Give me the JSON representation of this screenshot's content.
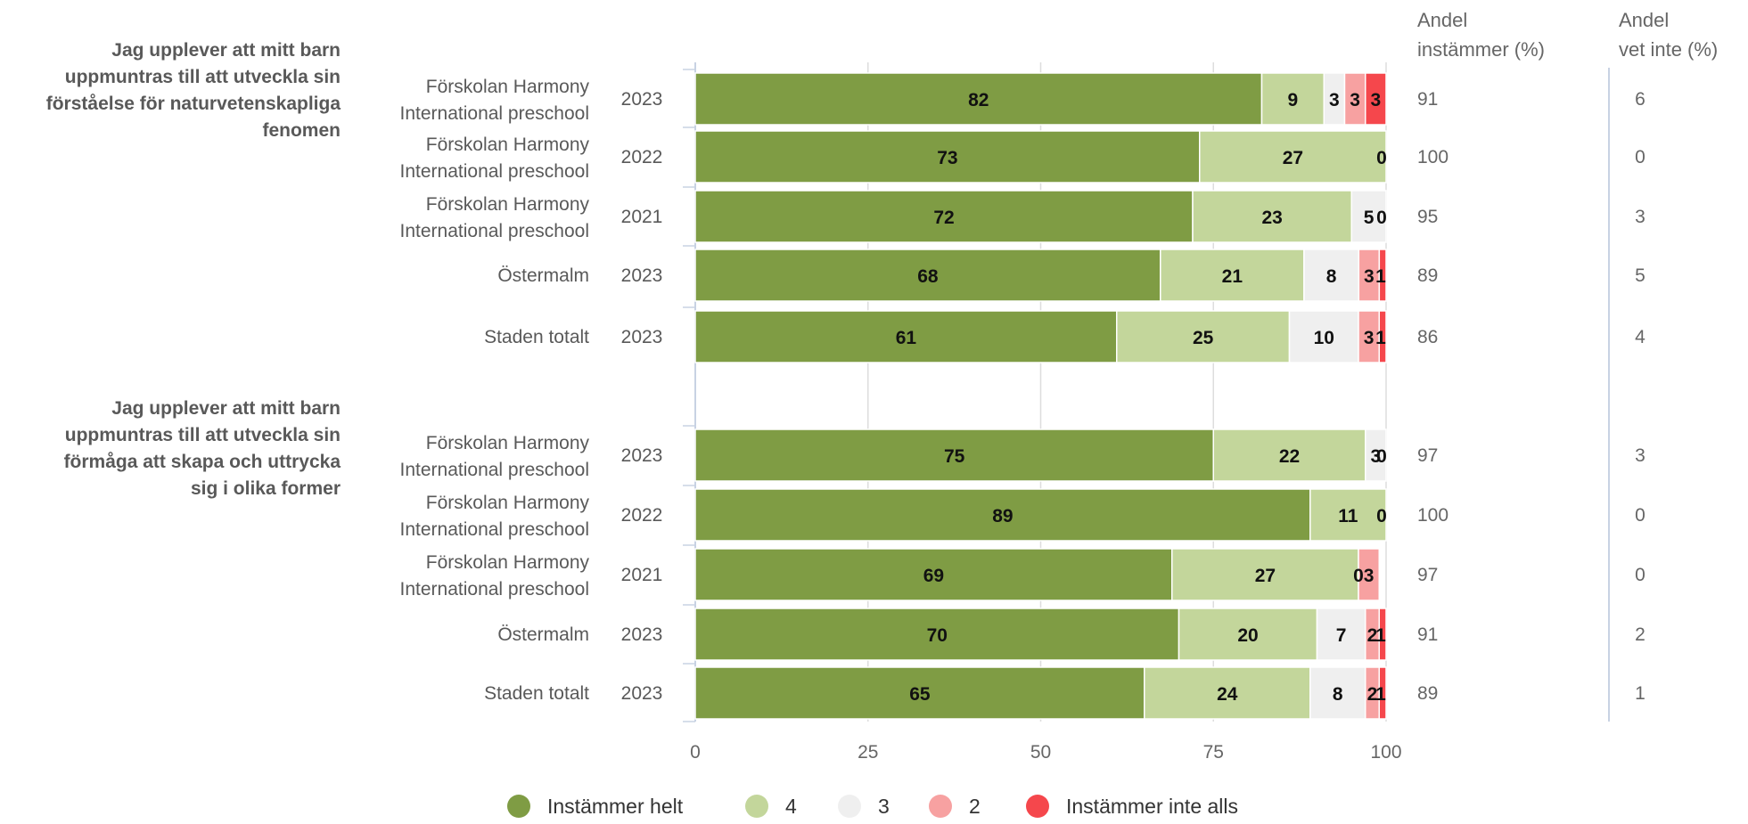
{
  "chart_data": {
    "type": "bar",
    "orientation": "horizontal",
    "stacked": true,
    "xlim": [
      0,
      100
    ],
    "x_ticks": [
      0,
      25,
      50,
      75,
      100
    ],
    "grid": true,
    "legend_position": "bottom",
    "column_headers": [
      [
        "Andel",
        "instämmer (%)"
      ],
      [
        "Andel",
        "vet inte (%)"
      ]
    ],
    "series": [
      {
        "name": "Instämmer helt",
        "color": "#7f9c44"
      },
      {
        "name": "4",
        "color": "#c3d69b"
      },
      {
        "name": "3",
        "color": "#efefef"
      },
      {
        "name": "2",
        "color": "#f7a1a1"
      },
      {
        "name": "Instämmer inte alls",
        "color": "#f5474c"
      }
    ],
    "groups": [
      {
        "question": [
          "Jag upplever att mitt barn",
          "uppmuntras till att utveckla sin",
          "förståelse för naturvetenskapliga",
          "fenomen"
        ],
        "rows": [
          {
            "unit": [
              "Förskolan Harmony",
              "International preschool"
            ],
            "year": "2023",
            "values": [
              82,
              9,
              3,
              3,
              3
            ],
            "andel_instammer": "91",
            "andel_vet_inte": "6"
          },
          {
            "unit": [
              "Förskolan Harmony",
              "International preschool"
            ],
            "year": "2022",
            "values": [
              73,
              27,
              0,
              0,
              0
            ],
            "andel_instammer": "100",
            "andel_vet_inte": "0"
          },
          {
            "unit": [
              "Förskolan Harmony",
              "International preschool"
            ],
            "year": "2021",
            "values": [
              72,
              23,
              5,
              0,
              0
            ],
            "andel_instammer": "95",
            "andel_vet_inte": "3"
          },
          {
            "unit": [
              "Östermalm"
            ],
            "year": "2023",
            "values": [
              68,
              21,
              8,
              3,
              1
            ],
            "andel_instammer": "89",
            "andel_vet_inte": "5"
          },
          {
            "unit": [
              "Staden totalt"
            ],
            "year": "2023",
            "values": [
              61,
              25,
              10,
              3,
              1
            ],
            "andel_instammer": "86",
            "andel_vet_inte": "4"
          }
        ]
      },
      {
        "question": [
          "Jag upplever att mitt barn",
          "uppmuntras till att utveckla sin",
          "förmåga att skapa och uttrycka",
          "sig i olika former"
        ],
        "rows": [
          {
            "unit": [
              "Förskolan Harmony",
              "International preschool"
            ],
            "year": "2023",
            "values": [
              75,
              22,
              3,
              0,
              0
            ],
            "andel_instammer": "97",
            "andel_vet_inte": "3"
          },
          {
            "unit": [
              "Förskolan Harmony",
              "International preschool"
            ],
            "year": "2022",
            "values": [
              89,
              11,
              0,
              0,
              0
            ],
            "andel_instammer": "100",
            "andel_vet_inte": "0"
          },
          {
            "unit": [
              "Förskolan Harmony",
              "International preschool"
            ],
            "year": "2021",
            "values": [
              69,
              27,
              0,
              3,
              0
            ],
            "andel_instammer": "97",
            "andel_vet_inte": "0"
          },
          {
            "unit": [
              "Östermalm"
            ],
            "year": "2023",
            "values": [
              70,
              20,
              7,
              2,
              1
            ],
            "andel_instammer": "91",
            "andel_vet_inte": "2"
          },
          {
            "unit": [
              "Staden totalt"
            ],
            "year": "2023",
            "values": [
              65,
              24,
              8,
              2,
              1
            ],
            "andel_instammer": "89",
            "andel_vet_inte": "1"
          }
        ]
      }
    ]
  }
}
